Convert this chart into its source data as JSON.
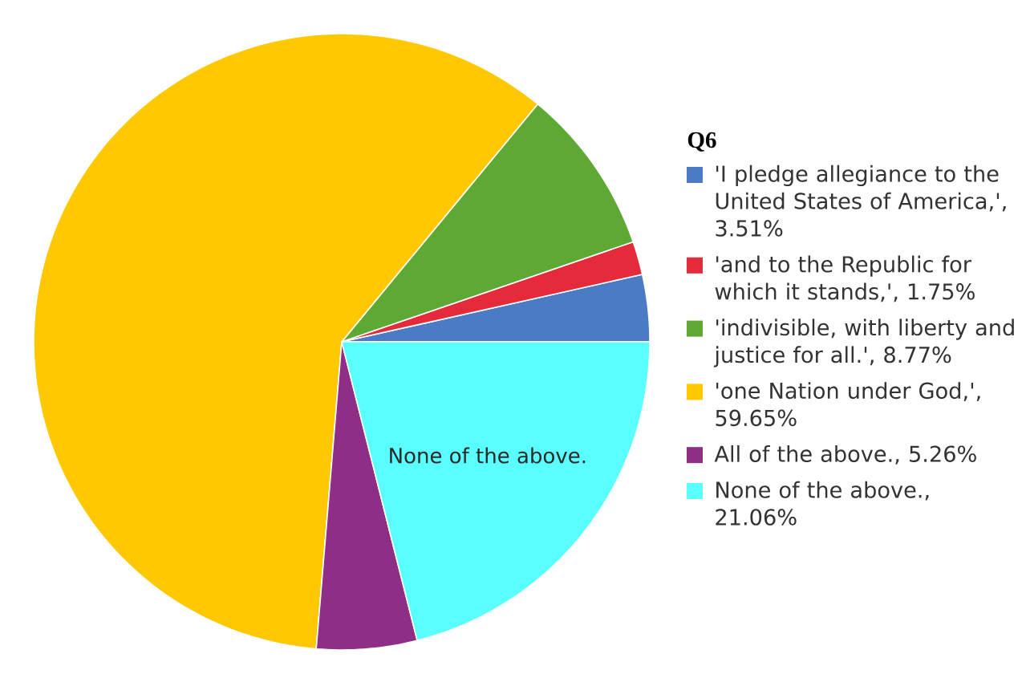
{
  "chart_data": {
    "type": "pie",
    "legend_title": "Q6",
    "legend": "right",
    "categories": [
      "'I pledge allegiance to the United States of America,', 3.51%",
      "'and to the Republic for which it stands,', 1.75%",
      "'indivisible, with liberty and justice for all.', 8.77%",
      "'one Nation under God,', 59.65%",
      "All of the above., 5.26%",
      "None of the above., 21.06%"
    ],
    "values": [
      3.51,
      1.75,
      8.77,
      59.65,
      5.26,
      21.06
    ],
    "colors": [
      "#4a7bc4",
      "#e52a3b",
      "#5ea834",
      "#ffc800",
      "#8f2e86",
      "#5affff"
    ],
    "value_labels": [
      null,
      null,
      null,
      null,
      null,
      "None of the above."
    ]
  }
}
